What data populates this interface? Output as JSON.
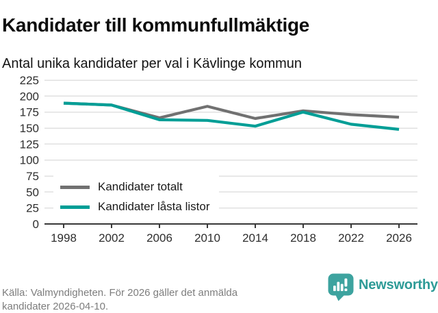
{
  "chart_data": {
    "type": "line",
    "title": "Kandidater till kommunfullmäktige",
    "subtitle": "Antal unika kandidater per val i Kävlinge kommun",
    "xlabel": "",
    "ylabel": "",
    "x": [
      1998,
      2002,
      2006,
      2010,
      2014,
      2018,
      2022,
      2026
    ],
    "series": [
      {
        "name": "Kandidater totalt",
        "color": "#717171",
        "values": [
          189,
          186,
          166,
          184,
          165,
          177,
          171,
          167
        ]
      },
      {
        "name": "Kandidater låsta listor",
        "color": "#009e96",
        "values": [
          189,
          186,
          163,
          162,
          153,
          175,
          156,
          148
        ]
      }
    ],
    "ylim": [
      0,
      225
    ],
    "yticks": [
      0,
      25,
      50,
      75,
      100,
      125,
      150,
      175,
      200,
      225
    ],
    "grid": true,
    "legend_position": "inside bottom-left"
  },
  "footer": {
    "source": "Källa: Valmyndigheten. För 2026 gäller det anmälda kandidater 2026-04-10.",
    "brand": "Newsworthy"
  },
  "colors": {
    "accent_teal": "#009e96",
    "series_gray": "#717171",
    "brand_teal": "#2e9b97",
    "logo_bubble_teal": "#3da39f"
  }
}
